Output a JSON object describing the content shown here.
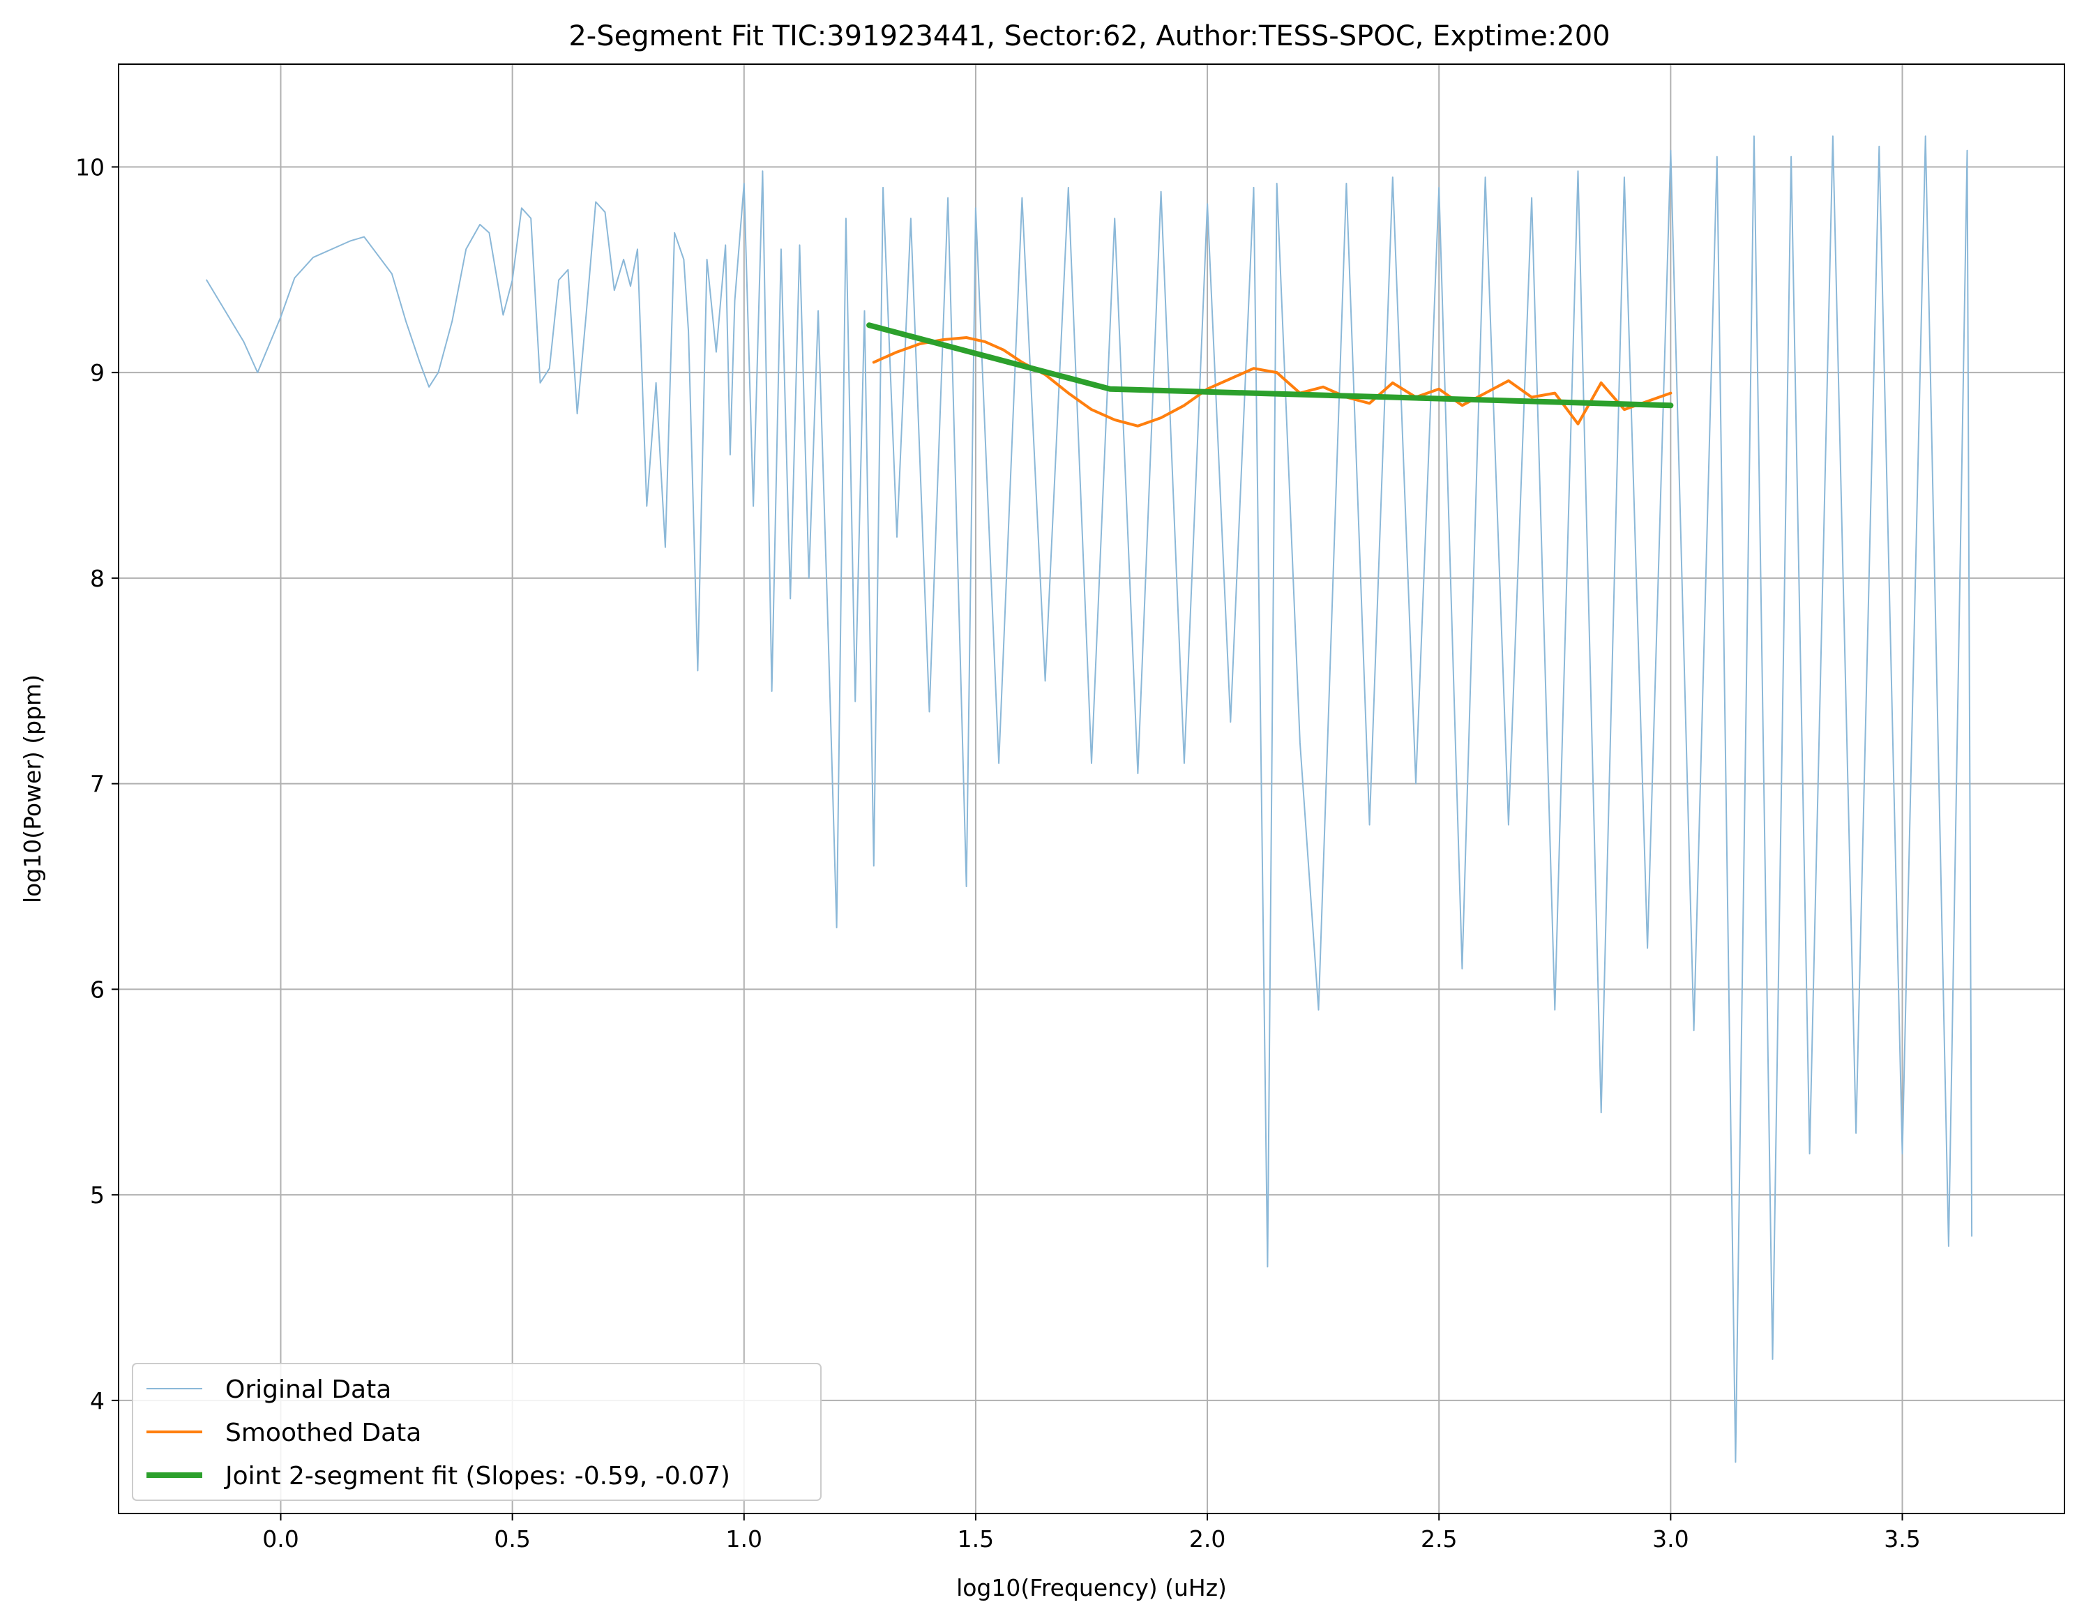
{
  "chart_data": {
    "type": "line",
    "title": "2-Segment Fit TIC:391923441, Sector:62, Author:TESS-SPOC, Exptime:200",
    "xlabel": "log10(Frequency) (uHz)",
    "ylabel": "log10(Power) (ppm)",
    "xlim": [
      -0.35,
      3.85
    ],
    "ylim": [
      3.45,
      10.5
    ],
    "xticks": [
      0.0,
      0.5,
      1.0,
      1.5,
      2.0,
      2.5,
      3.0,
      3.5
    ],
    "xtick_labels": [
      "0.0",
      "0.5",
      "1.0",
      "1.5",
      "2.0",
      "2.5",
      "3.0",
      "3.5"
    ],
    "yticks": [
      4,
      5,
      6,
      7,
      8,
      9,
      10
    ],
    "ytick_labels": [
      "4",
      "5",
      "6",
      "7",
      "8",
      "9",
      "10"
    ],
    "grid": true,
    "legend_position": "lower-left",
    "series": [
      {
        "name": "Original Data",
        "color": "#8bb8d8",
        "line_width": 2,
        "x": [
          -0.16,
          -0.08,
          -0.05,
          0.0,
          0.03,
          0.07,
          0.15,
          0.18,
          0.2,
          0.24,
          0.27,
          0.3,
          0.32,
          0.34,
          0.37,
          0.4,
          0.43,
          0.45,
          0.48,
          0.5,
          0.52,
          0.54,
          0.56,
          0.58,
          0.6,
          0.62,
          0.64,
          0.66,
          0.68,
          0.7,
          0.72,
          0.74,
          0.755,
          0.77,
          0.79,
          0.81,
          0.83,
          0.85,
          0.87,
          0.88,
          0.9,
          0.92,
          0.94,
          0.96,
          0.97,
          0.98,
          1.0,
          1.02,
          1.04,
          1.06,
          1.08,
          1.1,
          1.12,
          1.14,
          1.16,
          1.18,
          1.2,
          1.22,
          1.24,
          1.26,
          1.28,
          1.3,
          1.33,
          1.36,
          1.4,
          1.44,
          1.48,
          1.5,
          1.55,
          1.6,
          1.65,
          1.7,
          1.75,
          1.8,
          1.85,
          1.9,
          1.95,
          2.0,
          2.05,
          2.1,
          2.13,
          2.15,
          2.2,
          2.24,
          2.3,
          2.35,
          2.4,
          2.45,
          2.5,
          2.55,
          2.6,
          2.65,
          2.7,
          2.75,
          2.8,
          2.85,
          2.9,
          2.95,
          3.0,
          3.05,
          3.1,
          3.14,
          3.18,
          3.22,
          3.26,
          3.3,
          3.35,
          3.4,
          3.45,
          3.5,
          3.55,
          3.6,
          3.64,
          3.65
        ],
        "y": [
          9.45,
          9.15,
          9.0,
          9.27,
          9.46,
          9.56,
          9.64,
          9.66,
          9.6,
          9.48,
          9.25,
          9.05,
          8.93,
          9.0,
          9.25,
          9.6,
          9.72,
          9.68,
          9.28,
          9.45,
          9.8,
          9.75,
          8.95,
          9.02,
          9.45,
          9.5,
          8.8,
          9.3,
          9.83,
          9.78,
          9.4,
          9.55,
          9.42,
          9.6,
          8.35,
          8.95,
          8.15,
          9.68,
          9.55,
          9.2,
          7.55,
          9.55,
          9.1,
          9.62,
          8.6,
          9.35,
          9.92,
          8.35,
          9.98,
          7.45,
          9.6,
          7.9,
          9.62,
          8.0,
          9.3,
          7.85,
          6.3,
          9.75,
          7.4,
          9.3,
          6.6,
          9.9,
          8.2,
          9.75,
          7.35,
          9.85,
          6.5,
          9.8,
          7.1,
          9.85,
          7.5,
          9.9,
          7.1,
          9.75,
          7.05,
          9.88,
          7.1,
          9.82,
          7.3,
          9.9,
          4.65,
          9.92,
          7.2,
          5.9,
          9.92,
          6.8,
          9.95,
          7.0,
          9.9,
          6.1,
          9.95,
          6.8,
          9.85,
          5.9,
          9.98,
          5.4,
          9.95,
          6.2,
          10.08,
          5.8,
          10.05,
          3.7,
          10.15,
          4.2,
          10.05,
          5.2,
          10.15,
          5.3,
          10.1,
          5.2,
          10.15,
          4.75,
          10.08,
          4.8
        ]
      },
      {
        "name": "Smoothed Data",
        "color": "#ff7f0e",
        "line_width": 4,
        "x": [
          1.28,
          1.33,
          1.38,
          1.43,
          1.48,
          1.52,
          1.56,
          1.6,
          1.65,
          1.7,
          1.75,
          1.8,
          1.85,
          1.9,
          1.95,
          2.0,
          2.05,
          2.1,
          2.15,
          2.2,
          2.25,
          2.3,
          2.35,
          2.4,
          2.45,
          2.5,
          2.55,
          2.6,
          2.65,
          2.7,
          2.75,
          2.8,
          2.85,
          2.9,
          2.95,
          3.0
        ],
        "y": [
          9.05,
          9.1,
          9.14,
          9.16,
          9.17,
          9.15,
          9.11,
          9.05,
          8.99,
          8.9,
          8.82,
          8.77,
          8.74,
          8.78,
          8.84,
          8.92,
          8.97,
          9.02,
          9.0,
          8.9,
          8.93,
          8.88,
          8.85,
          8.95,
          8.88,
          8.92,
          8.84,
          8.9,
          8.96,
          8.88,
          8.9,
          8.75,
          8.95,
          8.82,
          8.86,
          8.9
        ]
      },
      {
        "name": "Joint 2-segment fit (Slopes: -0.59, -0.07)",
        "color": "#2ca02c",
        "line_width": 8,
        "x": [
          1.27,
          1.79,
          3.0
        ],
        "y": [
          9.23,
          8.92,
          8.84
        ]
      }
    ]
  }
}
